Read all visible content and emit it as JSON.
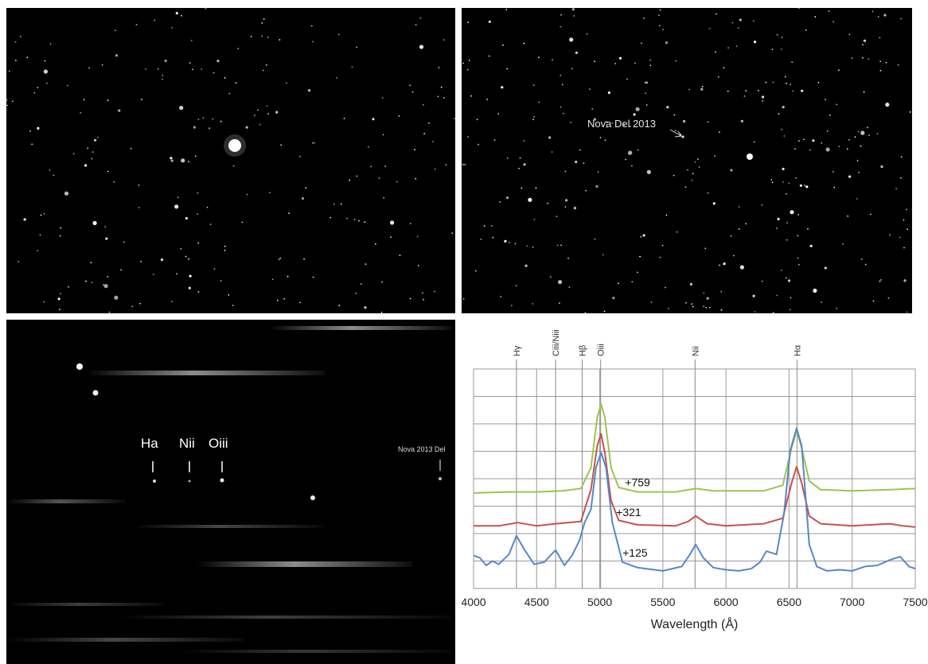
{
  "panels": {
    "star_field_left": {},
    "star_field_right": {
      "annotation": "Nova Del 2013"
    },
    "slit_spectrum": {
      "line_labels": [
        "Ha",
        "Nii",
        "Oiii"
      ],
      "annotation": "Nova 2013 Del"
    }
  },
  "chart_data": {
    "type": "line",
    "xlabel": "Wavelength (Å)",
    "ylabel": "",
    "xlim": [
      4000,
      7500
    ],
    "x_ticks": [
      4000,
      4500,
      5000,
      5500,
      6000,
      6500,
      7000,
      7500
    ],
    "grid": true,
    "ylim": [
      0,
      10
    ],
    "spectral_lines": [
      {
        "name": "Hγ",
        "wavelength": 4340
      },
      {
        "name": "Ciii/Niii",
        "wavelength": 4650
      },
      {
        "name": "Hβ",
        "wavelength": 4861
      },
      {
        "name": "Oiii",
        "wavelength": 5007
      },
      {
        "name": "Nii",
        "wavelength": 5755
      },
      {
        "name": "Hα",
        "wavelength": 6563
      }
    ],
    "series": [
      {
        "name": "+759",
        "color": "#9bc64b",
        "x": [
          4000,
          4300,
          4500,
          4700,
          4850,
          4930,
          4980,
          5010,
          5040,
          5090,
          5150,
          5300,
          5600,
          5760,
          5900,
          6300,
          6450,
          6520,
          6560,
          6600,
          6660,
          6750,
          7000,
          7300,
          7500
        ],
        "y": [
          4.35,
          4.4,
          4.4,
          4.45,
          4.55,
          5.5,
          7.8,
          8.4,
          7.8,
          5.5,
          4.6,
          4.4,
          4.4,
          4.55,
          4.45,
          4.45,
          4.7,
          6.4,
          7.2,
          6.4,
          4.9,
          4.5,
          4.45,
          4.5,
          4.55
        ]
      },
      {
        "name": "+321",
        "color": "#c9504c",
        "x": [
          4000,
          4200,
          4350,
          4500,
          4650,
          4850,
          4930,
          4980,
          5010,
          5040,
          5090,
          5150,
          5300,
          5600,
          5700,
          5760,
          5850,
          6000,
          6300,
          6450,
          6520,
          6560,
          6600,
          6660,
          6750,
          7000,
          7300,
          7400,
          7500
        ],
        "y": [
          2.85,
          2.85,
          3.0,
          2.85,
          2.95,
          3.05,
          4.5,
          6.5,
          7.05,
          6.2,
          4.0,
          3.1,
          2.9,
          2.85,
          3.05,
          3.3,
          2.95,
          2.85,
          2.95,
          3.2,
          4.8,
          5.55,
          4.8,
          3.3,
          2.95,
          2.85,
          2.95,
          2.85,
          2.8
        ]
      },
      {
        "name": "+125",
        "color": "#5687c8",
        "x": [
          4000,
          4050,
          4100,
          4150,
          4200,
          4280,
          4340,
          4400,
          4480,
          4560,
          4650,
          4720,
          4780,
          4840,
          4880,
          4930,
          4970,
          5010,
          5050,
          5100,
          5180,
          5300,
          5500,
          5650,
          5720,
          5760,
          5820,
          5900,
          6000,
          6100,
          6200,
          6270,
          6320,
          6400,
          6460,
          6510,
          6560,
          6600,
          6660,
          6720,
          6800,
          6900,
          7000,
          7100,
          7200,
          7300,
          7380,
          7450,
          7500
        ],
        "y": [
          1.5,
          1.4,
          1.05,
          1.25,
          1.1,
          1.55,
          2.4,
          1.8,
          1.1,
          1.2,
          1.75,
          1.05,
          1.5,
          2.2,
          3.0,
          3.6,
          5.5,
          6.2,
          5.5,
          3.0,
          1.2,
          0.95,
          0.8,
          1.0,
          1.6,
          2.0,
          1.4,
          0.95,
          0.85,
          0.8,
          0.9,
          1.2,
          1.7,
          1.55,
          3.4,
          6.3,
          7.3,
          6.5,
          2.0,
          1.0,
          0.8,
          0.85,
          0.8,
          1.0,
          1.05,
          1.3,
          1.45,
          1.0,
          0.9
        ]
      }
    ]
  }
}
